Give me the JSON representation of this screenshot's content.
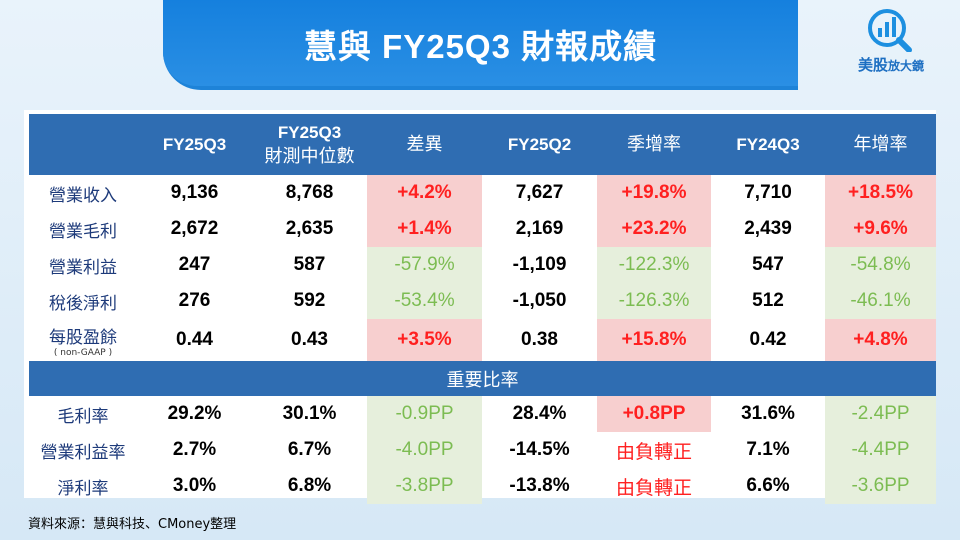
{
  "title": "慧與 FY25Q3 財報成績",
  "logo": {
    "name": "美股",
    "suffix": "放大鏡"
  },
  "header": [
    "",
    "FY25Q3",
    "FY25Q3 財測中位數",
    "差異",
    "FY25Q2",
    "季增率",
    "FY24Q3",
    "年增率"
  ],
  "header_lines": {
    "fy25q3_guidance_1": "FY25Q3",
    "fy25q3_guidance_2": "財測中位數"
  },
  "rows": [
    {
      "label": "營業收入",
      "fy25q3": "9,136",
      "guidance": "8,768",
      "diff": "+4.2%",
      "fy25q2": "7,627",
      "qoq": "+19.8%",
      "fy24q3": "7,710",
      "yoy": "+18.5%"
    },
    {
      "label": "營業毛利",
      "fy25q3": "2,672",
      "guidance": "2,635",
      "diff": "+1.4%",
      "fy25q2": "2,169",
      "qoq": "+23.2%",
      "fy24q3": "2,439",
      "yoy": "+9.6%"
    },
    {
      "label": "營業利益",
      "fy25q3": "247",
      "guidance": "587",
      "diff": "-57.9%",
      "fy25q2": "-1,109",
      "qoq": "-122.3%",
      "fy24q3": "547",
      "yoy": "-54.8%"
    },
    {
      "label": "稅後淨利",
      "fy25q3": "276",
      "guidance": "592",
      "diff": "-53.4%",
      "fy25q2": "-1,050",
      "qoq": "-126.3%",
      "fy24q3": "512",
      "yoy": "-46.1%"
    },
    {
      "label": "每股盈餘",
      "sublabel": "( non-GAAP )",
      "fy25q3": "0.44",
      "guidance": "0.43",
      "diff": "+3.5%",
      "fy25q2": "0.38",
      "qoq": "+15.8%",
      "fy24q3": "0.42",
      "yoy": "+4.8%"
    }
  ],
  "section_title": "重要比率",
  "ratios": [
    {
      "label": "毛利率",
      "fy25q3": "29.2%",
      "guidance": "30.1%",
      "diff": "-0.9PP",
      "fy25q2": "28.4%",
      "qoq": "+0.8PP",
      "fy24q3": "31.6%",
      "yoy": "-2.4PP"
    },
    {
      "label": "營業利益率",
      "fy25q3": "2.7%",
      "guidance": "6.7%",
      "diff": "-4.0PP",
      "fy25q2": "-14.5%",
      "qoq": "由負轉正",
      "fy24q3": "7.1%",
      "yoy": "-4.4PP"
    },
    {
      "label": "淨利率",
      "fy25q3": "3.0%",
      "guidance": "6.8%",
      "diff": "-3.8PP",
      "fy25q2": "-13.8%",
      "qoq": "由負轉正",
      "fy24q3": "6.6%",
      "yoy": "-3.6PP"
    }
  ],
  "source": "資料來源：慧與科技、CMoney整理",
  "colors": {
    "header_bg": "#2f6db2",
    "positive_bg": "#f7cfcf",
    "positive_text": "#ff2020",
    "negative_bg": "#e6efdc",
    "negative_text": "#7cbc52",
    "banner": "#1e83d8"
  }
}
